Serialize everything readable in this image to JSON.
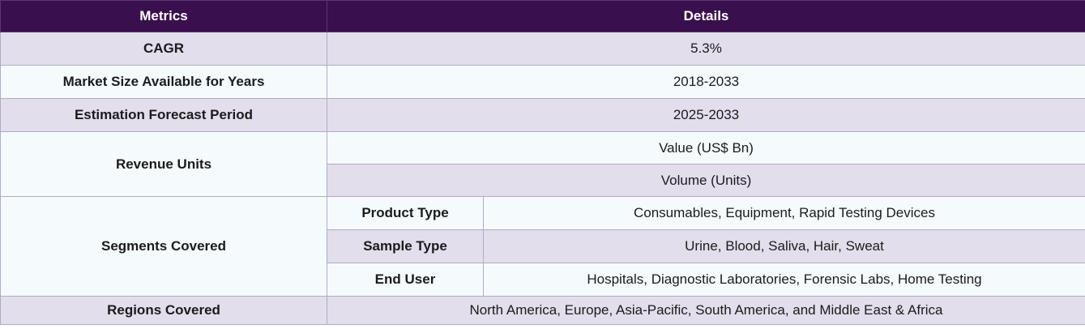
{
  "header": {
    "metrics": "Metrics",
    "details": "Details"
  },
  "rows": {
    "cagr": {
      "label": "CAGR",
      "value": "5.3%"
    },
    "market_size": {
      "label": "Market Size Available for Years",
      "value": "2018-2033"
    },
    "forecast": {
      "label": "Estimation Forecast Period",
      "value": "2025-2033"
    },
    "revenue": {
      "label": "Revenue Units",
      "values": [
        "Value (US$ Bn)",
        "Volume (Units)"
      ]
    },
    "segments": {
      "label": "Segments Covered",
      "items": [
        {
          "name": "Product Type",
          "value": "Consumables, Equipment, Rapid Testing Devices"
        },
        {
          "name": "Sample Type",
          "value": "Urine, Blood, Saliva, Hair, Sweat"
        },
        {
          "name": "End User",
          "value": "Hospitals, Diagnostic Laboratories, Forensic Labs, Home Testing"
        }
      ]
    },
    "regions": {
      "label": "Regions Covered",
      "value": "North America, Europe, Asia-Pacific, South America, and Middle East & Africa"
    }
  },
  "colors": {
    "header_bg": "#3a0f4d",
    "row_shade": "#e2deeb",
    "row_plain": "#f5fbfd",
    "border": "#b2a9c9"
  }
}
